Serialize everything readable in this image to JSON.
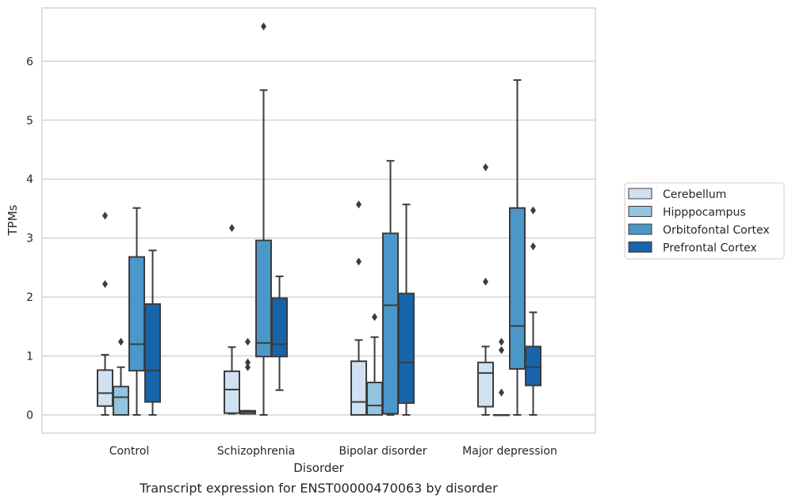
{
  "caption": "Transcript expression for ENST00000470063 by disorder",
  "chart_data": {
    "type": "box",
    "title": "",
    "xlabel": "Disorder",
    "ylabel": "TPMs",
    "ylim": [
      -0.3,
      6.9
    ],
    "yticks": [
      "0",
      "1",
      "2",
      "3",
      "4",
      "5",
      "6"
    ],
    "grid": "horizontal",
    "legend_position": "right",
    "categories": [
      "Control",
      "Schizophrenia",
      "Bipolar disorder",
      "Major depression"
    ],
    "series": [
      {
        "name": "Cerebellum",
        "color": "#d0e1f2",
        "boxes": [
          {
            "whislo": 0.0,
            "q1": 0.15,
            "med": 0.37,
            "q3": 0.76,
            "whishi": 1.02,
            "fliers": [
              2.22,
              3.38
            ]
          },
          {
            "whislo": 0.02,
            "q1": 0.03,
            "med": 0.43,
            "q3": 0.74,
            "whishi": 1.15,
            "fliers": [
              3.17
            ]
          },
          {
            "whislo": 0.0,
            "q1": 0.0,
            "med": 0.22,
            "q3": 0.91,
            "whishi": 1.27,
            "fliers": [
              2.6,
              3.57
            ]
          },
          {
            "whislo": 0.0,
            "q1": 0.14,
            "med": 0.71,
            "q3": 0.89,
            "whishi": 1.16,
            "fliers": [
              2.26,
              4.2
            ]
          }
        ]
      },
      {
        "name": "Hipppocampus",
        "color": "#94c4df",
        "boxes": [
          {
            "whislo": 0.0,
            "q1": 0.0,
            "med": 0.3,
            "q3": 0.48,
            "whishi": 0.81,
            "fliers": [
              1.24
            ]
          },
          {
            "whislo": 0.02,
            "q1": 0.02,
            "med": 0.05,
            "q3": 0.07,
            "whishi": 0.07,
            "fliers": [
              0.81,
              0.89,
              1.24
            ]
          },
          {
            "whislo": 0.0,
            "q1": 0.0,
            "med": 0.16,
            "q3": 0.55,
            "whishi": 1.32,
            "fliers": [
              1.66
            ]
          },
          {
            "whislo": 0.0,
            "q1": 0.0,
            "med": 0.0,
            "q3": 0.0,
            "whishi": 0.0,
            "fliers": [
              0.38,
              1.1,
              1.24
            ]
          }
        ]
      },
      {
        "name": "Orbitofontal Cortex",
        "color": "#4a98c9",
        "boxes": [
          {
            "whislo": 0.0,
            "q1": 0.75,
            "med": 1.2,
            "q3": 2.68,
            "whishi": 3.51,
            "fliers": []
          },
          {
            "whislo": 0.0,
            "q1": 0.99,
            "med": 1.22,
            "q3": 2.96,
            "whishi": 5.51,
            "fliers": [
              6.59
            ]
          },
          {
            "whislo": 0.0,
            "q1": 0.02,
            "med": 1.86,
            "q3": 3.08,
            "whishi": 4.31,
            "fliers": []
          },
          {
            "whislo": 0.0,
            "q1": 0.78,
            "med": 1.51,
            "q3": 3.51,
            "whishi": 5.68,
            "fliers": []
          }
        ]
      },
      {
        "name": "Prefrontal Cortex",
        "color": "#1764ab",
        "boxes": [
          {
            "whislo": 0.0,
            "q1": 0.22,
            "med": 0.75,
            "q3": 1.88,
            "whishi": 2.79,
            "fliers": []
          },
          {
            "whislo": 0.42,
            "q1": 0.99,
            "med": 1.2,
            "q3": 1.98,
            "whishi": 2.35,
            "fliers": []
          },
          {
            "whislo": 0.0,
            "q1": 0.2,
            "med": 0.89,
            "q3": 2.06,
            "whishi": 3.57,
            "fliers": []
          },
          {
            "whislo": 0.0,
            "q1": 0.5,
            "med": 0.81,
            "q3": 1.16,
            "whishi": 1.74,
            "fliers": [
              2.86,
              3.47
            ]
          }
        ]
      }
    ]
  }
}
